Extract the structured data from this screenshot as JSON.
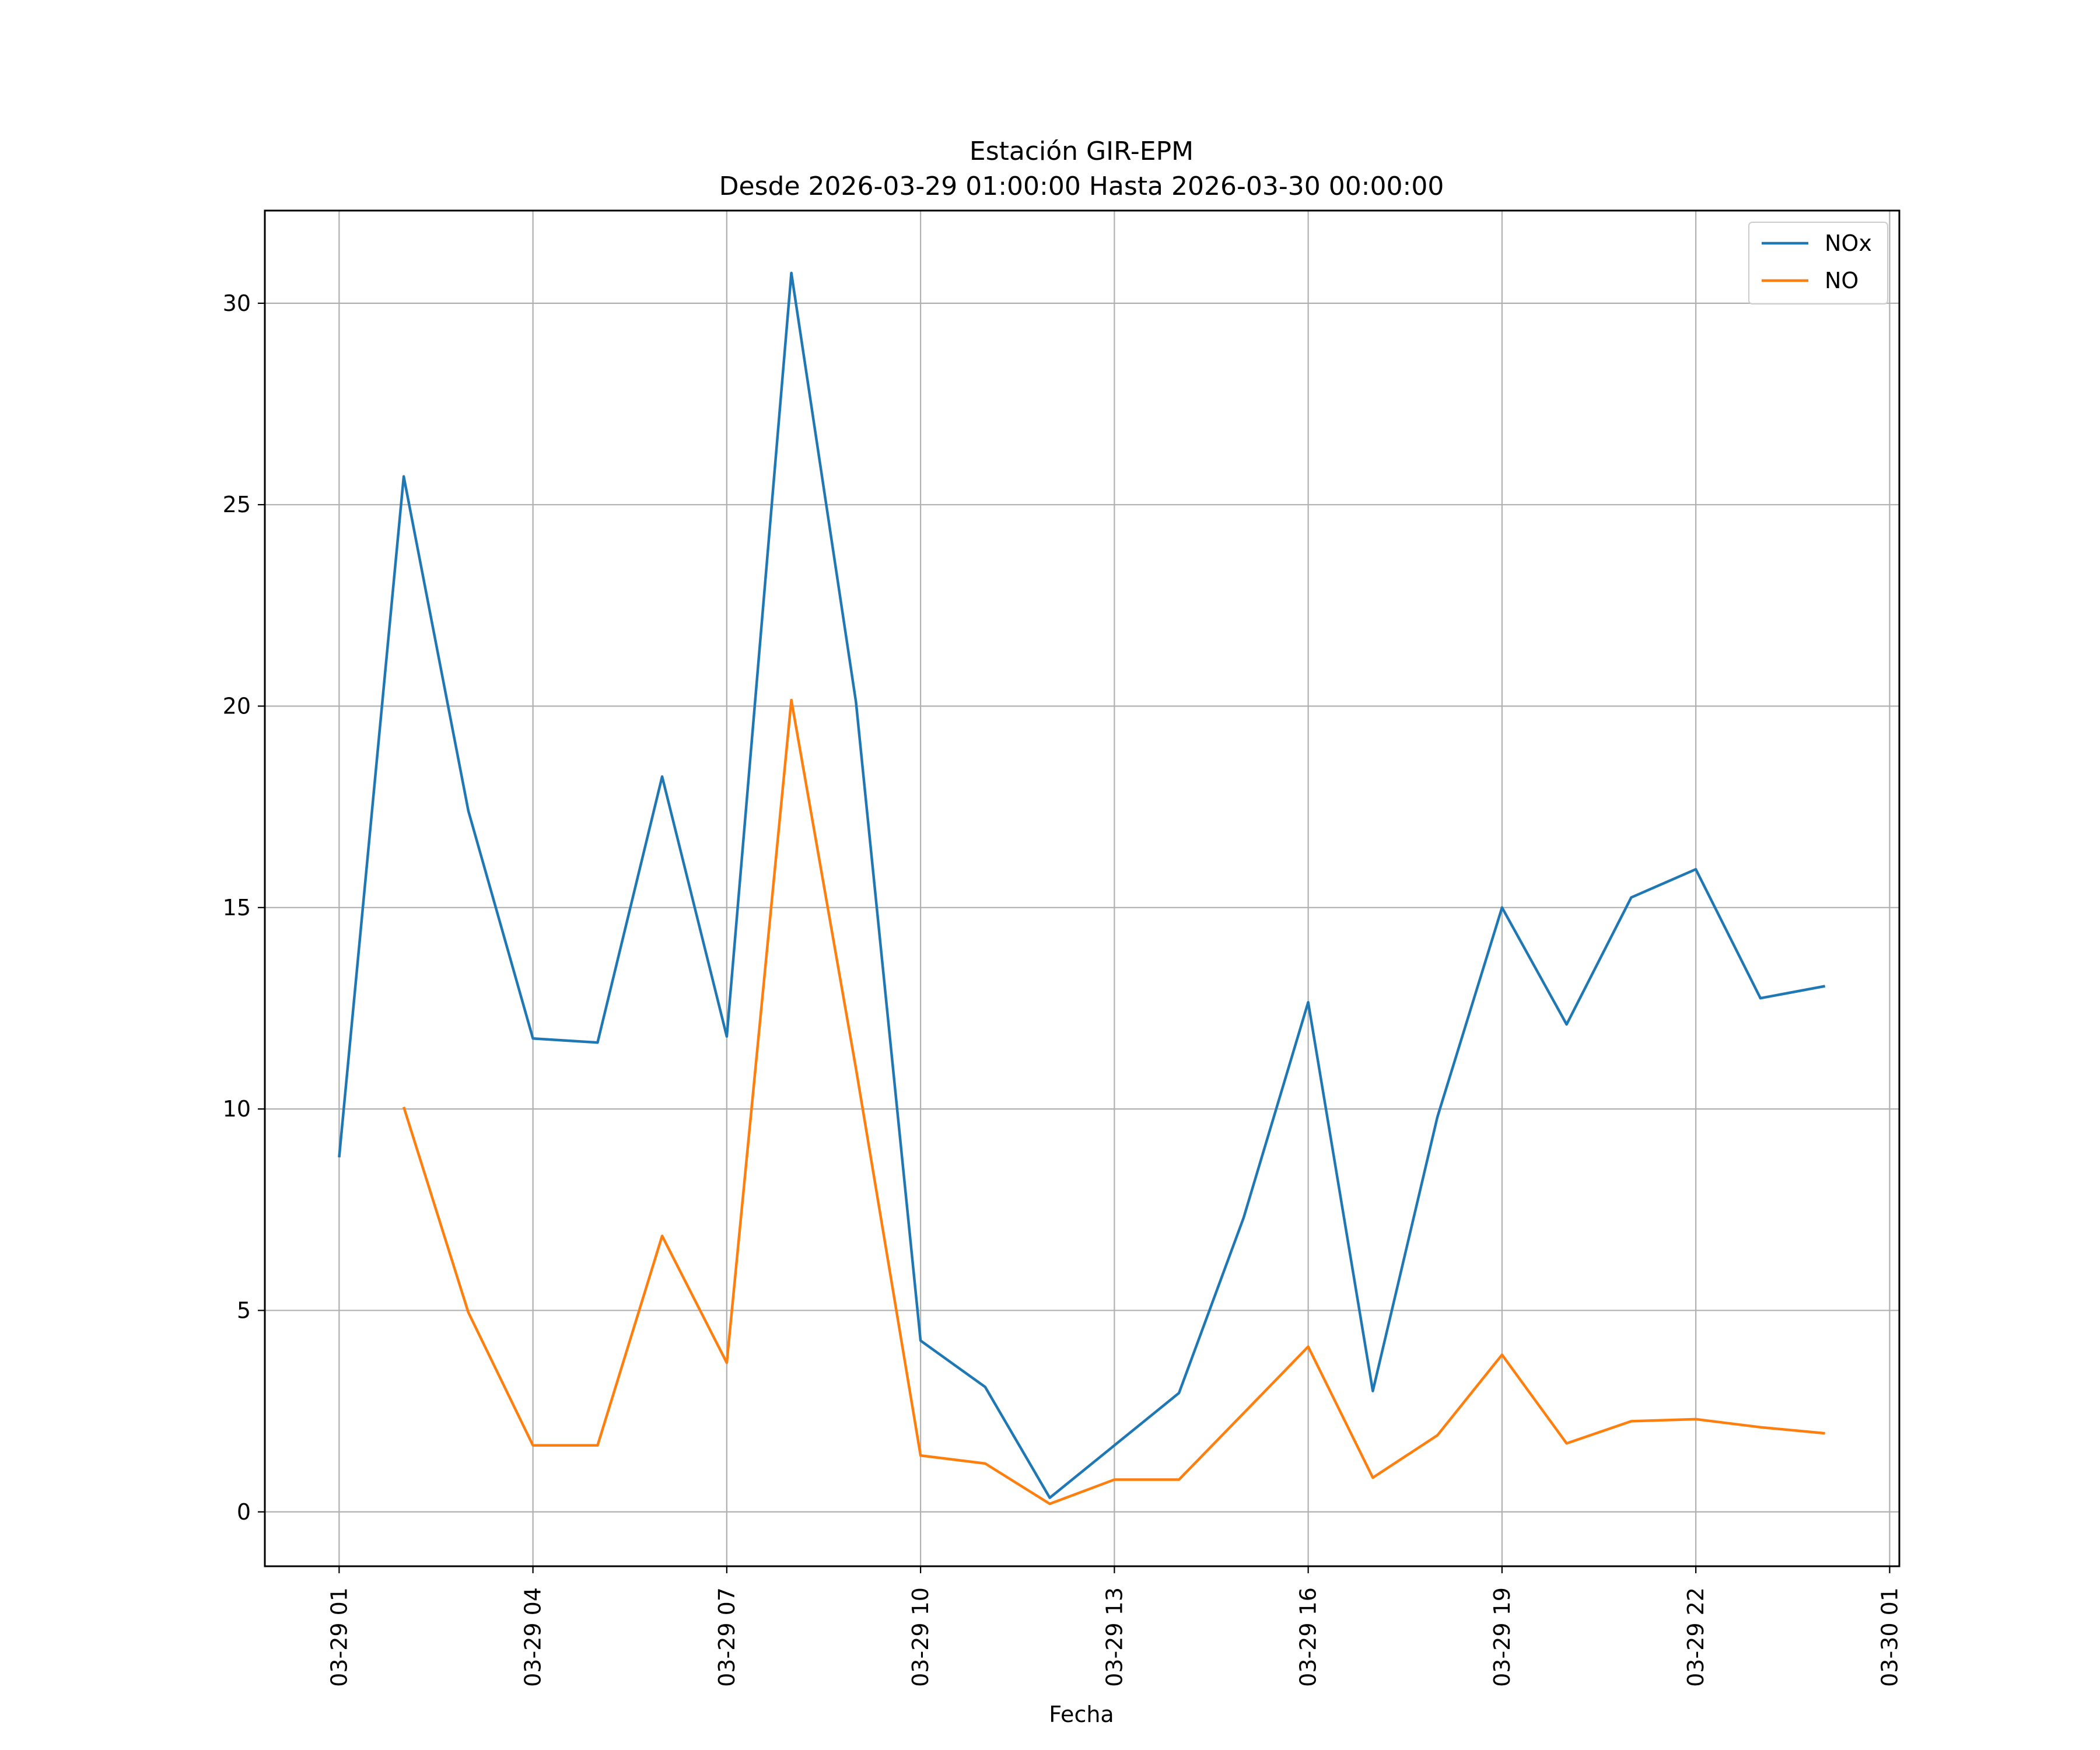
{
  "chart_data": {
    "type": "line",
    "title": "Estación GIR-EPM",
    "subtitle": "Desde 2026-03-29 01:00:00 Hasta 2026-03-30 00:00:00",
    "xlabel": "Fecha",
    "ylabel": "",
    "x_ticks": [
      "03-29 01",
      "03-29 04",
      "03-29 07",
      "03-29 10",
      "03-29 13",
      "03-29 16",
      "03-29 19",
      "03-29 22",
      "03-30 01"
    ],
    "x_tick_hours": [
      1,
      4,
      7,
      10,
      13,
      16,
      19,
      22,
      25
    ],
    "x_range_hours": [
      -0.15,
      25.15
    ],
    "y_ticks": [
      0,
      5,
      10,
      15,
      20,
      25,
      30
    ],
    "ylim": [
      -1.35,
      32.3
    ],
    "grid": true,
    "legend_position": "top-right",
    "x_hours": [
      1,
      2,
      3,
      4,
      5,
      6,
      7,
      8,
      9,
      10,
      11,
      12,
      13,
      14,
      15,
      16,
      17,
      18,
      19,
      20,
      21,
      22,
      23,
      24
    ],
    "series": [
      {
        "name": "NOx",
        "color": "#1f77b4",
        "values": [
          8.8,
          25.7,
          17.4,
          11.75,
          11.65,
          18.25,
          11.8,
          30.75,
          20.1,
          4.25,
          3.1,
          0.35,
          1.65,
          2.95,
          7.3,
          12.65,
          3.0,
          9.8,
          15.0,
          12.1,
          15.25,
          15.95,
          12.75,
          13.05
        ]
      },
      {
        "name": "NO",
        "color": "#ff7f0e",
        "values": [
          null,
          10.05,
          4.95,
          1.65,
          1.65,
          6.85,
          3.7,
          20.15,
          11.0,
          1.4,
          1.2,
          0.2,
          0.8,
          0.8,
          2.45,
          4.1,
          0.85,
          1.9,
          3.9,
          1.7,
          2.25,
          2.3,
          2.1,
          1.95
        ]
      }
    ]
  }
}
